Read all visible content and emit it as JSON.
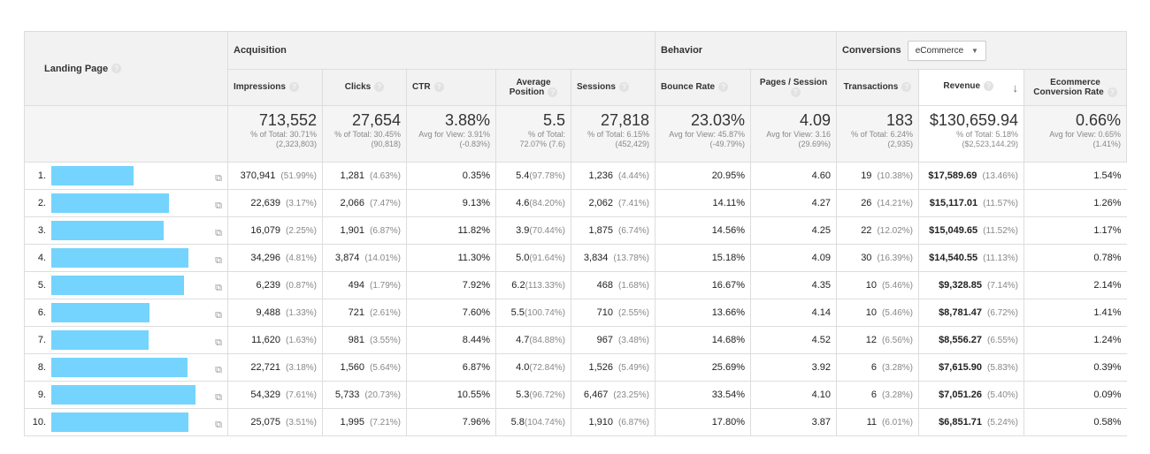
{
  "header": {
    "landing_page": "Landing Page",
    "acquisition": "Acquisition",
    "behavior": "Behavior",
    "conversions": "Conversions",
    "conversions_select": "eCommerce",
    "columns": [
      "Impressions",
      "Clicks",
      "CTR",
      "Average Position",
      "Sessions",
      "Bounce Rate",
      "Pages / Session",
      "Transactions",
      "Revenue",
      "Ecommerce Conversion Rate"
    ],
    "help": "?",
    "sort_icon": "arrow-down"
  },
  "summary": [
    {
      "value": "713,552",
      "note": "% of Total: 30.71% (2,323,803)"
    },
    {
      "value": "27,654",
      "note": "% of Total: 30.45% (90,818)"
    },
    {
      "value": "3.88%",
      "note": "Avg for View: 3.91% (-0.83%)"
    },
    {
      "value": "5.5",
      "note": "% of Total: 72.07% (7.6)"
    },
    {
      "value": "27,818",
      "note": "% of Total: 6.15% (452,429)"
    },
    {
      "value": "23.03%",
      "note": "Avg for View: 45.87% (-49.79%)"
    },
    {
      "value": "4.09",
      "note": "Avg for View: 3.16 (29.69%)"
    },
    {
      "value": "183",
      "note": "% of Total: 6.24% (2,935)"
    },
    {
      "value": "$130,659.94",
      "note": "% of Total: 5.18% ($2,523,144.29)"
    },
    {
      "value": "0.66%",
      "note": "Avg for View: 0.65% (1.41%)"
    }
  ],
  "rows": [
    {
      "idx": "1.",
      "impr": "370,941",
      "impr_p": "(51.99%)",
      "clicks": "1,281",
      "clicks_p": "(4.63%)",
      "ctr": "0.35%",
      "pos": "5.4",
      "pos_p": "(97.78%)",
      "sess": "1,236",
      "sess_p": "(4.44%)",
      "bounce": "20.95%",
      "pps": "4.60",
      "trans": "19",
      "trans_p": "(10.38%)",
      "rev": "$17,589.69",
      "rev_p": "(13.46%)",
      "ecr": "1.54%"
    },
    {
      "idx": "2.",
      "impr": "22,639",
      "impr_p": "(3.17%)",
      "clicks": "2,066",
      "clicks_p": "(7.47%)",
      "ctr": "9.13%",
      "pos": "4.6",
      "pos_p": "(84.20%)",
      "sess": "2,062",
      "sess_p": "(7.41%)",
      "bounce": "14.11%",
      "pps": "4.27",
      "trans": "26",
      "trans_p": "(14.21%)",
      "rev": "$15,117.01",
      "rev_p": "(11.57%)",
      "ecr": "1.26%"
    },
    {
      "idx": "3.",
      "impr": "16,079",
      "impr_p": "(2.25%)",
      "clicks": "1,901",
      "clicks_p": "(6.87%)",
      "ctr": "11.82%",
      "pos": "3.9",
      "pos_p": "(70.44%)",
      "sess": "1,875",
      "sess_p": "(6.74%)",
      "bounce": "14.56%",
      "pps": "4.25",
      "trans": "22",
      "trans_p": "(12.02%)",
      "rev": "$15,049.65",
      "rev_p": "(11.52%)",
      "ecr": "1.17%"
    },
    {
      "idx": "4.",
      "impr": "34,296",
      "impr_p": "(4.81%)",
      "clicks": "3,874",
      "clicks_p": "(14.01%)",
      "ctr": "11.30%",
      "pos": "5.0",
      "pos_p": "(91.64%)",
      "sess": "3,834",
      "sess_p": "(13.78%)",
      "bounce": "15.18%",
      "pps": "4.09",
      "trans": "30",
      "trans_p": "(16.39%)",
      "rev": "$14,540.55",
      "rev_p": "(11.13%)",
      "ecr": "0.78%"
    },
    {
      "idx": "5.",
      "impr": "6,239",
      "impr_p": "(0.87%)",
      "clicks": "494",
      "clicks_p": "(1.79%)",
      "ctr": "7.92%",
      "pos": "6.2",
      "pos_p": "(113.33%)",
      "sess": "468",
      "sess_p": "(1.68%)",
      "bounce": "16.67%",
      "pps": "4.35",
      "trans": "10",
      "trans_p": "(5.46%)",
      "rev": "$9,328.85",
      "rev_p": "(7.14%)",
      "ecr": "2.14%"
    },
    {
      "idx": "6.",
      "impr": "9,488",
      "impr_p": "(1.33%)",
      "clicks": "721",
      "clicks_p": "(2.61%)",
      "ctr": "7.60%",
      "pos": "5.5",
      "pos_p": "(100.74%)",
      "sess": "710",
      "sess_p": "(2.55%)",
      "bounce": "13.66%",
      "pps": "4.14",
      "trans": "10",
      "trans_p": "(5.46%)",
      "rev": "$8,781.47",
      "rev_p": "(6.72%)",
      "ecr": "1.41%"
    },
    {
      "idx": "7.",
      "impr": "11,620",
      "impr_p": "(1.63%)",
      "clicks": "981",
      "clicks_p": "(3.55%)",
      "ctr": "8.44%",
      "pos": "4.7",
      "pos_p": "(84.88%)",
      "sess": "967",
      "sess_p": "(3.48%)",
      "bounce": "14.68%",
      "pps": "4.52",
      "trans": "12",
      "trans_p": "(6.56%)",
      "rev": "$8,556.27",
      "rev_p": "(6.55%)",
      "ecr": "1.24%"
    },
    {
      "idx": "8.",
      "impr": "22,721",
      "impr_p": "(3.18%)",
      "clicks": "1,560",
      "clicks_p": "(5.64%)",
      "ctr": "6.87%",
      "pos": "4.0",
      "pos_p": "(72.84%)",
      "sess": "1,526",
      "sess_p": "(5.49%)",
      "bounce": "25.69%",
      "pps": "3.92",
      "trans": "6",
      "trans_p": "(3.28%)",
      "rev": "$7,615.90",
      "rev_p": "(5.83%)",
      "ecr": "0.39%"
    },
    {
      "idx": "9.",
      "impr": "54,329",
      "impr_p": "(7.61%)",
      "clicks": "5,733",
      "clicks_p": "(20.73%)",
      "ctr": "10.55%",
      "pos": "5.3",
      "pos_p": "(96.72%)",
      "sess": "6,467",
      "sess_p": "(23.25%)",
      "bounce": "33.54%",
      "pps": "4.10",
      "trans": "6",
      "trans_p": "(3.28%)",
      "rev": "$7,051.26",
      "rev_p": "(5.40%)",
      "ecr": "0.09%"
    },
    {
      "idx": "10.",
      "impr": "25,075",
      "impr_p": "(3.51%)",
      "clicks": "1,995",
      "clicks_p": "(7.21%)",
      "ctr": "7.96%",
      "pos": "5.8",
      "pos_p": "(104.74%)",
      "sess": "1,910",
      "sess_p": "(6.87%)",
      "bounce": "17.80%",
      "pps": "3.87",
      "trans": "11",
      "trans_p": "(6.01%)",
      "rev": "$6,851.71",
      "rev_p": "(5.24%)",
      "ecr": "0.58%"
    }
  ],
  "colors": {
    "redaction": "#74d4fd"
  }
}
